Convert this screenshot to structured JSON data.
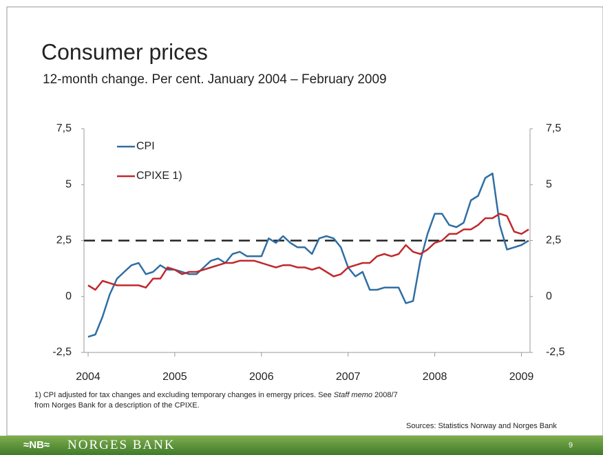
{
  "chart_data": {
    "type": "line",
    "title": "Consumer prices",
    "subtitle": "12-month change. Per cent. January 2004 – February 2009",
    "categories": [
      "2004",
      null,
      null,
      null,
      null,
      null,
      null,
      null,
      null,
      null,
      null,
      null,
      "2005",
      null,
      null,
      null,
      null,
      null,
      null,
      null,
      null,
      null,
      null,
      null,
      "2006",
      null,
      null,
      null,
      null,
      null,
      null,
      null,
      null,
      null,
      null,
      null,
      "2007",
      null,
      null,
      null,
      null,
      null,
      null,
      null,
      null,
      null,
      null,
      null,
      "2008",
      null,
      null,
      null,
      null,
      null,
      null,
      null,
      null,
      null,
      null,
      null,
      "2009",
      null
    ],
    "series": [
      {
        "name": "CPI",
        "color": "#2f6ea3",
        "values": [
          -1.8,
          -1.7,
          -0.9,
          0.1,
          0.8,
          1.1,
          1.4,
          1.5,
          1.0,
          1.1,
          1.4,
          1.2,
          1.2,
          1.1,
          1.0,
          1.0,
          1.3,
          1.6,
          1.7,
          1.5,
          1.9,
          2.0,
          1.8,
          1.8,
          1.8,
          2.6,
          2.4,
          2.7,
          2.4,
          2.2,
          2.2,
          1.9,
          2.6,
          2.7,
          2.6,
          2.2,
          1.3,
          0.9,
          1.1,
          0.3,
          0.3,
          0.4,
          0.4,
          0.4,
          -0.3,
          -0.2,
          1.6,
          2.8,
          3.7,
          3.7,
          3.2,
          3.1,
          3.3,
          4.3,
          4.5,
          5.3,
          5.5,
          3.2,
          2.1,
          2.2,
          2.3,
          2.5
        ]
      },
      {
        "name": "CPIXE 1)",
        "color": "#c0282d",
        "values": [
          0.5,
          0.3,
          0.7,
          0.6,
          0.5,
          0.5,
          0.5,
          0.5,
          0.4,
          0.8,
          0.8,
          1.3,
          1.2,
          1.0,
          1.1,
          1.1,
          1.2,
          1.3,
          1.4,
          1.5,
          1.5,
          1.6,
          1.6,
          1.6,
          1.5,
          1.4,
          1.3,
          1.4,
          1.4,
          1.3,
          1.3,
          1.2,
          1.3,
          1.1,
          0.9,
          1.0,
          1.3,
          1.4,
          1.5,
          1.5,
          1.8,
          1.9,
          1.8,
          1.9,
          2.3,
          2.0,
          1.9,
          2.1,
          2.4,
          2.5,
          2.8,
          2.8,
          3.0,
          3.0,
          3.2,
          3.5,
          3.5,
          3.7,
          3.6,
          2.9,
          2.8,
          3.0
        ]
      }
    ],
    "target": 2.5,
    "ylim": [
      -2.5,
      7.5
    ],
    "yticks": [
      {
        "value": -2.5,
        "label": "-2,5"
      },
      0,
      {
        "value": 2.5,
        "label": "2,5"
      },
      5,
      {
        "value": 7.5,
        "label": "7,5"
      }
    ],
    "y2lim": [
      -2.5,
      7.5
    ],
    "y2ticks": [
      {
        "value": -2.5,
        "label": "-2,5"
      },
      0,
      {
        "value": 2.5,
        "label": "2,5"
      },
      5,
      {
        "value": 7.5,
        "label": "7,5"
      }
    ],
    "legend": "upper left",
    "grid": false
  },
  "footnote": [
    "1) CPI adjusted for tax changes  and excluding temporary changes in emergy prices. See ",
    "Staff memo",
    " 2008/7 from Norges Bank for a description of the CPIXE."
  ],
  "source": "Sources: Statistics Norway and Norges Bank",
  "logo": "≈NB≈",
  "bank_name": "NORGES BANK",
  "page_number": "9"
}
